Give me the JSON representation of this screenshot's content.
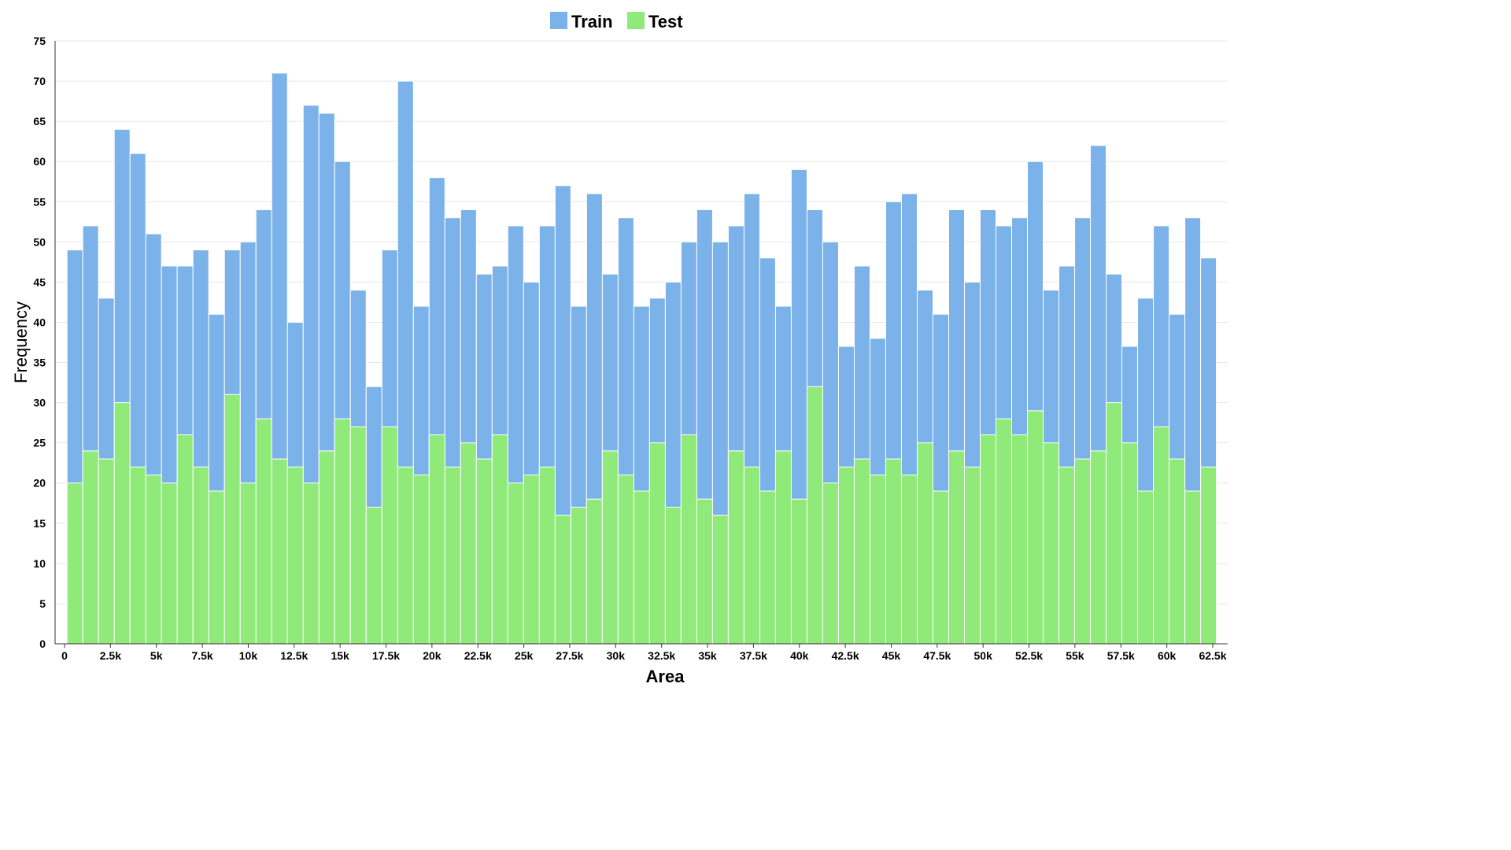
{
  "chart_data": {
    "type": "bar",
    "layout": "overlaid",
    "xlabel": "Area",
    "ylabel": "Frequency",
    "ylim": [
      0,
      75
    ],
    "y_ticks": [
      0,
      5,
      10,
      15,
      20,
      25,
      30,
      35,
      40,
      45,
      50,
      55,
      60,
      65,
      70,
      75
    ],
    "x_ticks": [
      {
        "value": 0,
        "label": "0"
      },
      {
        "value": 2500,
        "label": "2.5k"
      },
      {
        "value": 5000,
        "label": "5k"
      },
      {
        "value": 7500,
        "label": "7.5k"
      },
      {
        "value": 10000,
        "label": "10k"
      },
      {
        "value": 12500,
        "label": "12.5k"
      },
      {
        "value": 15000,
        "label": "15k"
      },
      {
        "value": 17500,
        "label": "17.5k"
      },
      {
        "value": 20000,
        "label": "20k"
      },
      {
        "value": 22500,
        "label": "22.5k"
      },
      {
        "value": 25000,
        "label": "25k"
      },
      {
        "value": 27500,
        "label": "27.5k"
      },
      {
        "value": 30000,
        "label": "30k"
      },
      {
        "value": 32500,
        "label": "32.5k"
      },
      {
        "value": 35000,
        "label": "35k"
      },
      {
        "value": 37500,
        "label": "37.5k"
      },
      {
        "value": 40000,
        "label": "40k"
      },
      {
        "value": 42500,
        "label": "42.5k"
      },
      {
        "value": 45000,
        "label": "45k"
      },
      {
        "value": 47500,
        "label": "47.5k"
      },
      {
        "value": 50000,
        "label": "50k"
      },
      {
        "value": 52500,
        "label": "52.5k"
      },
      {
        "value": 55000,
        "label": "55k"
      },
      {
        "value": 57500,
        "label": "57.5k"
      },
      {
        "value": 60000,
        "label": "60k"
      },
      {
        "value": 62500,
        "label": "62.5k"
      }
    ],
    "bin_start": 136,
    "bin_width": 857,
    "legend": {
      "position": "top-center"
    },
    "grid": true,
    "series": [
      {
        "name": "Train",
        "color": "#7cb2ea",
        "values": [
          49,
          52,
          43,
          64,
          61,
          51,
          47,
          47,
          49,
          41,
          49,
          50,
          54,
          71,
          40,
          67,
          66,
          60,
          44,
          32,
          49,
          70,
          42,
          58,
          53,
          54,
          46,
          47,
          52,
          45,
          52,
          57,
          42,
          56,
          46,
          53,
          42,
          43,
          45,
          50,
          54,
          50,
          52,
          56,
          48,
          42,
          59,
          54,
          50,
          37,
          47,
          38,
          55,
          56,
          44,
          41,
          54,
          45,
          54,
          52,
          53,
          60,
          44,
          47,
          53,
          62,
          46,
          37,
          43,
          52,
          41,
          53,
          48
        ]
      },
      {
        "name": "Test",
        "color": "#90ea7a",
        "values": [
          20,
          24,
          23,
          30,
          22,
          21,
          20,
          26,
          22,
          19,
          31,
          20,
          28,
          23,
          22,
          20,
          24,
          28,
          27,
          17,
          27,
          22,
          21,
          26,
          22,
          25,
          23,
          26,
          20,
          21,
          22,
          16,
          17,
          18,
          24,
          21,
          19,
          25,
          17,
          26,
          18,
          16,
          24,
          22,
          19,
          24,
          18,
          32,
          20,
          22,
          23,
          21,
          23,
          21,
          25,
          19,
          24,
          22,
          26,
          28,
          26,
          29,
          25,
          22,
          23,
          24,
          30,
          25,
          19,
          27,
          23,
          19,
          22
        ]
      }
    ]
  }
}
